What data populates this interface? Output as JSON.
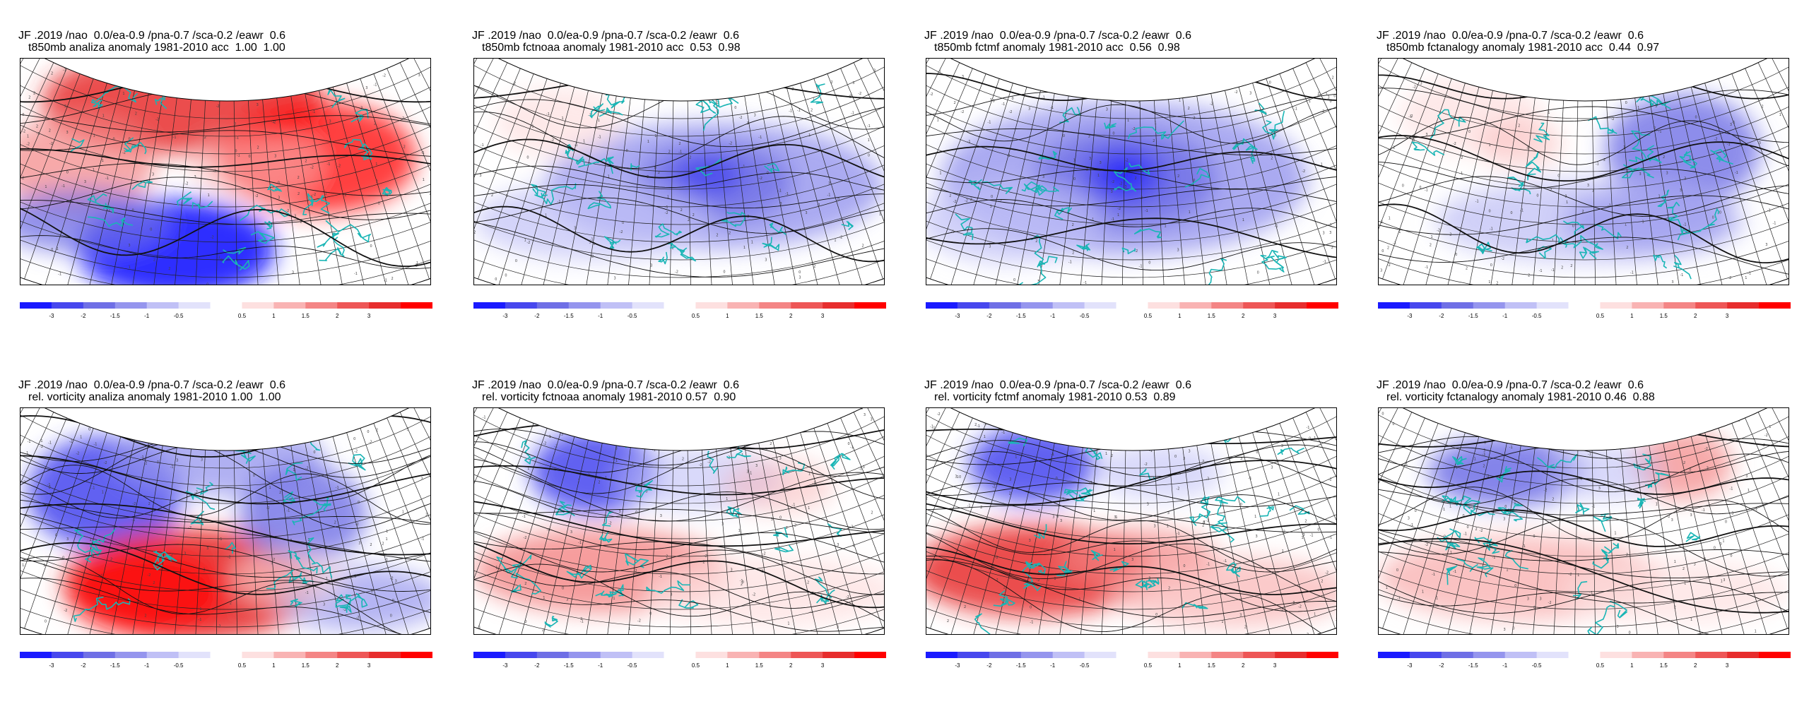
{
  "colorbar": {
    "labels": [
      "-3",
      "-2",
      "-1.5",
      "-1",
      "-0.5",
      "0.5",
      "1",
      "1.5",
      "2",
      "3"
    ],
    "colors": [
      "#1a1aff",
      "#4747ee",
      "#6f6fe6",
      "#9595ee",
      "#c0c0f6",
      "#e2e2fb",
      "#ffffff",
      "#fde0e0",
      "#f9b3b3",
      "#f48585",
      "#ee5656",
      "#e72d2d",
      "#ff0000"
    ]
  },
  "panels": [
    {
      "line1": "JF .2019 /nao  0.0/ea-0.9 /pna-0.7 /sca-0.2 /eawr  0.6",
      "line2": "t850mb analiza anomaly 1981-2010 acc  1.00  1.00"
    },
    {
      "line1": "JF .2019 /nao  0.0/ea-0.9 /pna-0.7 /sca-0.2 /eawr  0.6",
      "line2": "t850mb fctnoaa anomaly 1981-2010 acc  0.53  0.98"
    },
    {
      "line1": "JF .2019 /nao  0.0/ea-0.9 /pna-0.7 /sca-0.2 /eawr  0.6",
      "line2": "t850mb fctmf anomaly 1981-2010 acc  0.56  0.98"
    },
    {
      "line1": "JF .2019 /nao  0.0/ea-0.9 /pna-0.7 /sca-0.2 /eawr  0.6",
      "line2": "t850mb fctanalogy anomaly 1981-2010 acc  0.44  0.97"
    },
    {
      "line1": "JF .2019 /nao  0.0/ea-0.9 /pna-0.7 /sca-0.2 /eawr  0.6",
      "line2": "rel. vorticity analiza anomaly 1981-2010 1.00  1.00"
    },
    {
      "line1": "JF .2019 /nao  0.0/ea-0.9 /pna-0.7 /sca-0.2 /eawr  0.6",
      "line2": "rel. vorticity fctnoaa anomaly 1981-2010 0.57  0.90"
    },
    {
      "line1": "JF .2019 /nao  0.0/ea-0.9 /pna-0.7 /sca-0.2 /eawr  0.6",
      "line2": "rel. vorticity fctmf anomaly 1981-2010 0.53  0.89"
    },
    {
      "line1": "JF .2019 /nao  0.0/ea-0.9 /pna-0.7 /sca-0.2 /eawr  0.6",
      "line2": "rel. vorticity fctanalogy anomaly 1981-2010 0.46  0.88"
    }
  ]
}
